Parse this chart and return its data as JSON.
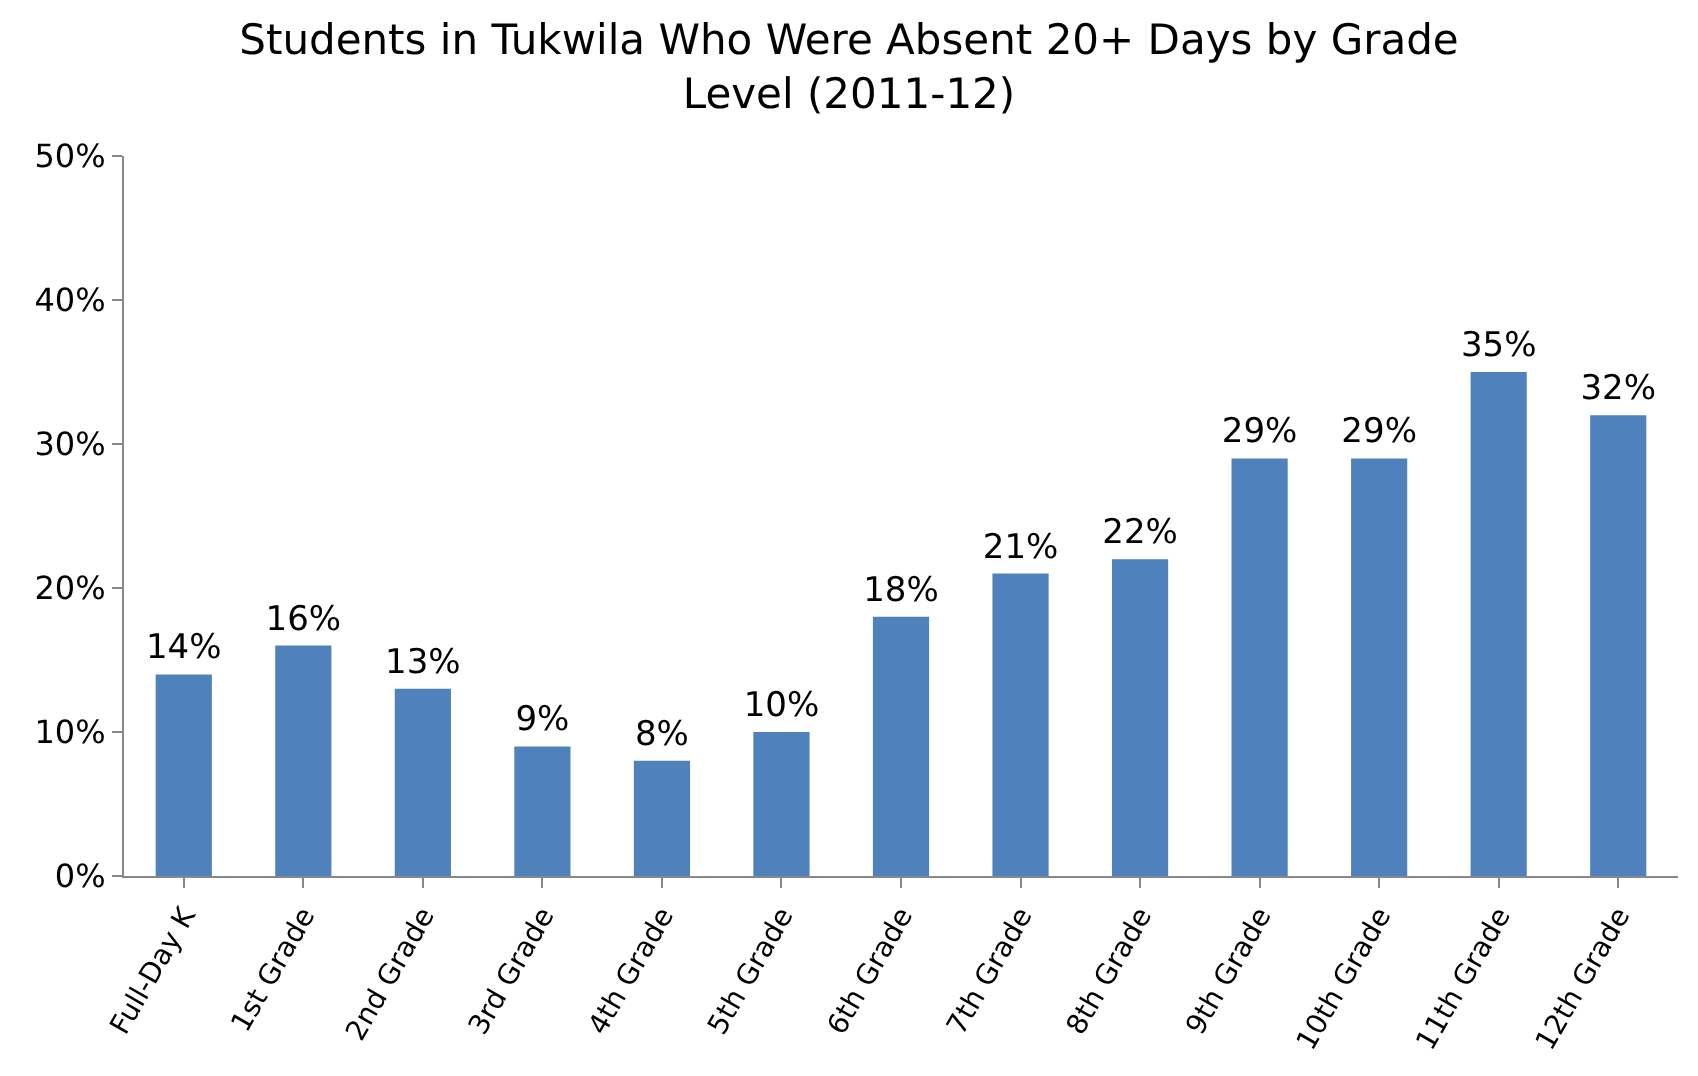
{
  "chart_data": {
    "type": "bar",
    "title": "Students in Tukwila Who Were Absent 20+ Days by Grade Level (2011-12)",
    "categories": [
      "Full-Day K",
      "1st Grade",
      "2nd Grade",
      "3rd Grade",
      "4th Grade",
      "5th Grade",
      "6th Grade",
      "7th Grade",
      "8th Grade",
      "9th Grade",
      "10th Grade",
      "11th Grade",
      "12th Grade"
    ],
    "values": [
      14,
      16,
      13,
      9,
      8,
      10,
      18,
      21,
      22,
      29,
      29,
      35,
      32
    ],
    "value_labels": [
      "14%",
      "16%",
      "13%",
      "9%",
      "8%",
      "10%",
      "18%",
      "21%",
      "22%",
      "29%",
      "29%",
      "35%",
      "32%"
    ],
    "color": "#4f81bd",
    "ylim": [
      0,
      50
    ],
    "yticks": [
      {
        "value": 0,
        "label": "0%"
      },
      {
        "value": 10,
        "label": "10%"
      },
      {
        "value": 20,
        "label": "20%"
      },
      {
        "value": 30,
        "label": "30%"
      },
      {
        "value": 40,
        "label": "40%"
      },
      {
        "value": 50,
        "label": "50%"
      }
    ],
    "grid": false,
    "legend": false
  }
}
